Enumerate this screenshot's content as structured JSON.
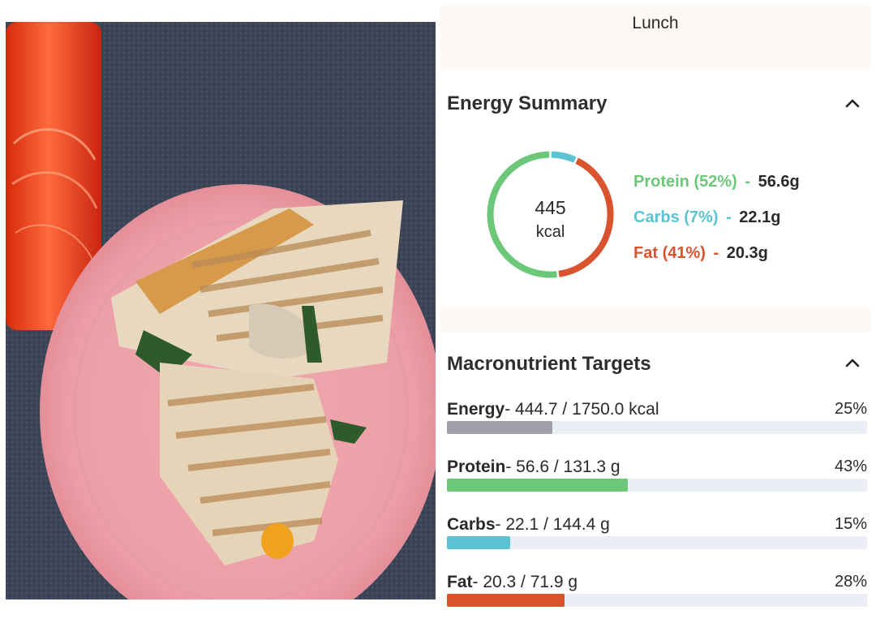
{
  "meal": {
    "title": "Lunch"
  },
  "energy_summary": {
    "title": "Energy Summary",
    "kcal_value": "445",
    "kcal_unit": "kcal",
    "macros": [
      {
        "name": "Protein",
        "percent_label": "(52%)",
        "amount": "56.6g",
        "share": 0.52,
        "color": "#6cc878"
      },
      {
        "name": "Carbs",
        "percent_label": "(7%)",
        "amount": "22.1g",
        "share": 0.07,
        "color": "#5bc3d1"
      },
      {
        "name": "Fat",
        "percent_label": "(41%)",
        "amount": "20.3g",
        "share": 0.41,
        "color": "#d9542e"
      }
    ],
    "dash": "-"
  },
  "targets": {
    "title": "Macronutrient Targets",
    "rows": [
      {
        "name": "Energy",
        "detail": "- 444.7 / 1750.0 kcal",
        "percent": "25%",
        "progress": 0.25,
        "color": "#a2a1ab"
      },
      {
        "name": "Protein",
        "detail": "- 56.6 / 131.3 g",
        "percent": "43%",
        "progress": 0.43,
        "color": "#6cc878"
      },
      {
        "name": "Carbs",
        "detail": "- 22.1 / 144.4 g",
        "percent": "15%",
        "progress": 0.15,
        "color": "#5bc3d1"
      },
      {
        "name": "Fat",
        "detail": "- 20.3 / 71.9 g",
        "percent": "28%",
        "progress": 0.28,
        "color": "#d9542e"
      }
    ]
  },
  "icons": {
    "collapse": "chevron-up-icon"
  }
}
